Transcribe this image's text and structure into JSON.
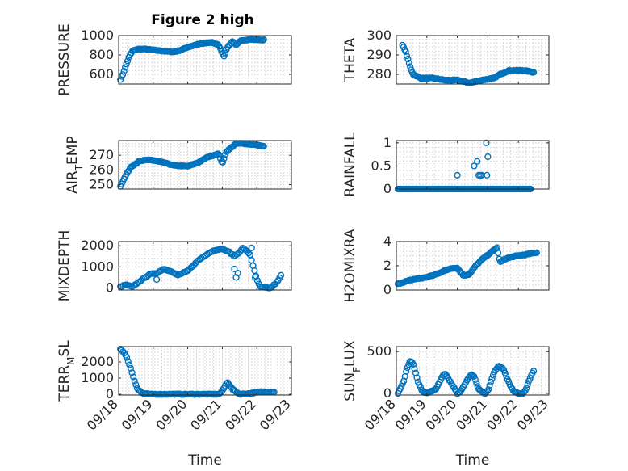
{
  "figure_title": "Figure 2 high",
  "chart_data": [
    {
      "type": "scatter",
      "ylabel": "PRESSURE",
      "xlabel": "",
      "title": "Figure 2 high",
      "ylim": [
        500,
        1000
      ],
      "yticks": [
        600,
        800,
        1000
      ],
      "ytick_labels": [
        "600",
        "800",
        "1000"
      ],
      "xlim": [
        0,
        5
      ],
      "color": "#0072BD",
      "marker": "circle",
      "grid": true,
      "profile": [
        [
          0.05,
          550
        ],
        [
          0.12,
          600
        ],
        [
          0.2,
          680
        ],
        [
          0.3,
          780
        ],
        [
          0.4,
          840
        ],
        [
          0.55,
          860
        ],
        [
          0.8,
          860
        ],
        [
          1.0,
          850
        ],
        [
          1.3,
          840
        ],
        [
          1.6,
          830
        ],
        [
          1.8,
          850
        ],
        [
          2.0,
          880
        ],
        [
          2.3,
          910
        ],
        [
          2.7,
          930
        ],
        [
          2.9,
          900
        ],
        [
          3.0,
          820
        ],
        [
          3.05,
          790
        ],
        [
          3.15,
          880
        ],
        [
          3.3,
          940
        ],
        [
          3.4,
          900
        ],
        [
          3.55,
          950
        ],
        [
          3.8,
          960
        ],
        [
          4.2,
          955
        ]
      ],
      "n_points": 120
    },
    {
      "type": "scatter",
      "ylabel": "THETA",
      "xlabel": "",
      "ylim": [
        275,
        300
      ],
      "yticks": [
        280,
        290,
        300
      ],
      "ytick_labels": [
        "280",
        "290",
        "300"
      ],
      "xlim": [
        0,
        5
      ],
      "color": "#0072BD",
      "marker": "circle",
      "grid": true,
      "profile": [
        [
          0.2,
          295
        ],
        [
          0.3,
          292
        ],
        [
          0.45,
          284
        ],
        [
          0.55,
          280
        ],
        [
          0.8,
          278
        ],
        [
          1.2,
          278
        ],
        [
          1.6,
          277
        ],
        [
          2.0,
          277
        ],
        [
          2.4,
          275.5
        ],
        [
          2.8,
          277
        ],
        [
          3.2,
          278
        ],
        [
          3.4,
          280
        ],
        [
          3.7,
          282
        ],
        [
          4.2,
          282
        ],
        [
          4.5,
          281
        ]
      ],
      "n_points": 120
    },
    {
      "type": "scatter",
      "ylabel": "AIR_TEMP",
      "xlabel": "",
      "ylim": [
        247,
        280
      ],
      "yticks": [
        250,
        260,
        270
      ],
      "ytick_labels": [
        "250",
        "260",
        "270"
      ],
      "xlim": [
        0,
        5
      ],
      "color": "#0072BD",
      "marker": "circle",
      "grid": true,
      "profile": [
        [
          0.05,
          249
        ],
        [
          0.2,
          256
        ],
        [
          0.35,
          262
        ],
        [
          0.6,
          266
        ],
        [
          0.9,
          267
        ],
        [
          1.3,
          265
        ],
        [
          1.6,
          263
        ],
        [
          2.0,
          262.5
        ],
        [
          2.3,
          265
        ],
        [
          2.6,
          269
        ],
        [
          2.9,
          271
        ],
        [
          3.0,
          264
        ],
        [
          3.1,
          272
        ],
        [
          3.3,
          276
        ],
        [
          3.4,
          278
        ],
        [
          3.6,
          278
        ],
        [
          4.0,
          277
        ],
        [
          4.2,
          276
        ]
      ],
      "n_points": 120
    },
    {
      "type": "scatter",
      "ylabel": "RAINFALL",
      "xlabel": "",
      "ylim": [
        0,
        1.05
      ],
      "yticks": [
        0,
        0.5,
        1
      ],
      "ytick_labels": [
        "0",
        "0.5",
        "1"
      ],
      "xlim": [
        0,
        5
      ],
      "color": "#0072BD",
      "marker": "circle",
      "grid": true,
      "baseline": {
        "x_start": 0.05,
        "x_end": 4.4,
        "y": 0,
        "n": 140
      },
      "extra_points": [
        [
          2.0,
          0.3
        ],
        [
          2.55,
          0.5
        ],
        [
          2.7,
          0.3
        ],
        [
          2.75,
          0.3
        ],
        [
          2.8,
          0.3
        ],
        [
          2.95,
          1.0
        ],
        [
          3.0,
          0.7
        ],
        [
          2.97,
          0.3
        ],
        [
          2.65,
          0.6
        ]
      ]
    },
    {
      "type": "scatter",
      "ylabel": "MIXDEPTH",
      "xlabel": "",
      "ylim": [
        -100,
        2200
      ],
      "yticks": [
        0,
        1000,
        2000
      ],
      "ytick_labels": [
        "0",
        "1000",
        "2000"
      ],
      "xlim": [
        0,
        5
      ],
      "color": "#0072BD",
      "marker": "circle",
      "grid": true,
      "profile": [
        [
          0.05,
          50
        ],
        [
          0.2,
          150
        ],
        [
          0.4,
          50
        ],
        [
          0.6,
          300
        ],
        [
          0.9,
          650
        ],
        [
          1.1,
          700
        ],
        [
          1.3,
          900
        ],
        [
          1.5,
          800
        ],
        [
          1.7,
          600
        ],
        [
          2.0,
          800
        ],
        [
          2.3,
          1300
        ],
        [
          2.6,
          1650
        ],
        [
          2.8,
          1800
        ],
        [
          3.0,
          1850
        ],
        [
          3.2,
          1700
        ],
        [
          3.35,
          1500
        ],
        [
          3.5,
          1700
        ],
        [
          3.6,
          1900
        ],
        [
          3.8,
          1600
        ],
        [
          3.9,
          1000
        ],
        [
          4.0,
          400
        ],
        [
          4.1,
          50
        ],
        [
          4.3,
          0
        ],
        [
          4.4,
          0
        ],
        [
          4.6,
          300
        ],
        [
          4.7,
          600
        ]
      ],
      "extra_points": [
        [
          1.1,
          400
        ],
        [
          3.35,
          900
        ],
        [
          3.4,
          500
        ],
        [
          3.45,
          700
        ],
        [
          3.85,
          1900
        ],
        [
          3.95,
          500
        ]
      ],
      "n_points": 110
    },
    {
      "type": "scatter",
      "ylabel": "H2OMIXRA",
      "xlabel": "",
      "ylim": [
        0,
        4
      ],
      "yticks": [
        0,
        2,
        4
      ],
      "ytick_labels": [
        "0",
        "2",
        "4"
      ],
      "xlim": [
        0,
        5
      ],
      "color": "#0072BD",
      "marker": "circle",
      "grid": true,
      "profile": [
        [
          0.05,
          0.5
        ],
        [
          0.3,
          0.7
        ],
        [
          0.6,
          0.9
        ],
        [
          0.9,
          1.0
        ],
        [
          1.2,
          1.2
        ],
        [
          1.5,
          1.5
        ],
        [
          1.8,
          1.8
        ],
        [
          2.0,
          1.8
        ],
        [
          2.2,
          1.2
        ],
        [
          2.4,
          1.3
        ],
        [
          2.6,
          2.0
        ],
        [
          2.8,
          2.5
        ],
        [
          3.0,
          2.9
        ],
        [
          3.2,
          3.3
        ],
        [
          3.3,
          3.5
        ],
        [
          3.4,
          2.3
        ],
        [
          3.6,
          2.6
        ],
        [
          3.9,
          2.8
        ],
        [
          4.2,
          2.9
        ],
        [
          4.6,
          3.1
        ]
      ],
      "n_points": 120
    },
    {
      "type": "scatter",
      "ylabel": "TERR_MSL",
      "xlabel": "Time",
      "ylim": [
        -50,
        2950
      ],
      "yticks": [
        0,
        1000,
        2000
      ],
      "ytick_labels": [
        "0",
        "1000",
        "2000"
      ],
      "xlim": [
        0,
        5
      ],
      "xticks": [
        0,
        1,
        2,
        3,
        4,
        5
      ],
      "xtick_labels": [
        "09/18",
        "09/19",
        "09/20",
        "09/21",
        "09/22",
        "09/23"
      ],
      "color": "#0072BD",
      "marker": "circle",
      "grid": true,
      "profile": [
        [
          0.05,
          2800
        ],
        [
          0.15,
          2600
        ],
        [
          0.25,
          2200
        ],
        [
          0.35,
          1600
        ],
        [
          0.45,
          900
        ],
        [
          0.55,
          300
        ],
        [
          0.7,
          50
        ],
        [
          0.9,
          0
        ],
        [
          2.9,
          0
        ],
        [
          3.0,
          200
        ],
        [
          3.1,
          600
        ],
        [
          3.15,
          750
        ],
        [
          3.3,
          300
        ],
        [
          3.5,
          0
        ],
        [
          3.8,
          50
        ],
        [
          4.1,
          150
        ],
        [
          4.5,
          150
        ]
      ],
      "n_points": 120
    },
    {
      "type": "scatter",
      "ylabel": "SUN_FLUX",
      "xlabel": "Time",
      "ylim": [
        -20,
        560
      ],
      "yticks": [
        0,
        500
      ],
      "ytick_labels": [
        "0",
        "500"
      ],
      "xlim": [
        0,
        5
      ],
      "xticks": [
        0,
        1,
        2,
        3,
        4,
        5
      ],
      "xtick_labels": [
        "09/18",
        "09/19",
        "09/20",
        "09/21",
        "09/22",
        "09/23"
      ],
      "color": "#0072BD",
      "marker": "circle",
      "grid": true,
      "profile": [
        [
          0.05,
          0
        ],
        [
          0.25,
          150
        ],
        [
          0.35,
          300
        ],
        [
          0.45,
          390
        ],
        [
          0.55,
          360
        ],
        [
          0.7,
          150
        ],
        [
          0.85,
          20
        ],
        [
          1.0,
          0
        ],
        [
          1.3,
          50
        ],
        [
          1.5,
          200
        ],
        [
          1.6,
          240
        ],
        [
          1.8,
          120
        ],
        [
          2.0,
          0
        ],
        [
          2.1,
          20
        ],
        [
          2.3,
          150
        ],
        [
          2.45,
          230
        ],
        [
          2.55,
          200
        ],
        [
          2.7,
          50
        ],
        [
          2.9,
          0
        ],
        [
          3.0,
          30
        ],
        [
          3.2,
          250
        ],
        [
          3.35,
          330
        ],
        [
          3.5,
          300
        ],
        [
          3.7,
          120
        ],
        [
          3.85,
          20
        ],
        [
          4.0,
          0
        ],
        [
          4.15,
          0
        ],
        [
          4.25,
          50
        ],
        [
          4.4,
          200
        ],
        [
          4.5,
          270
        ]
      ],
      "n_points": 115
    }
  ]
}
